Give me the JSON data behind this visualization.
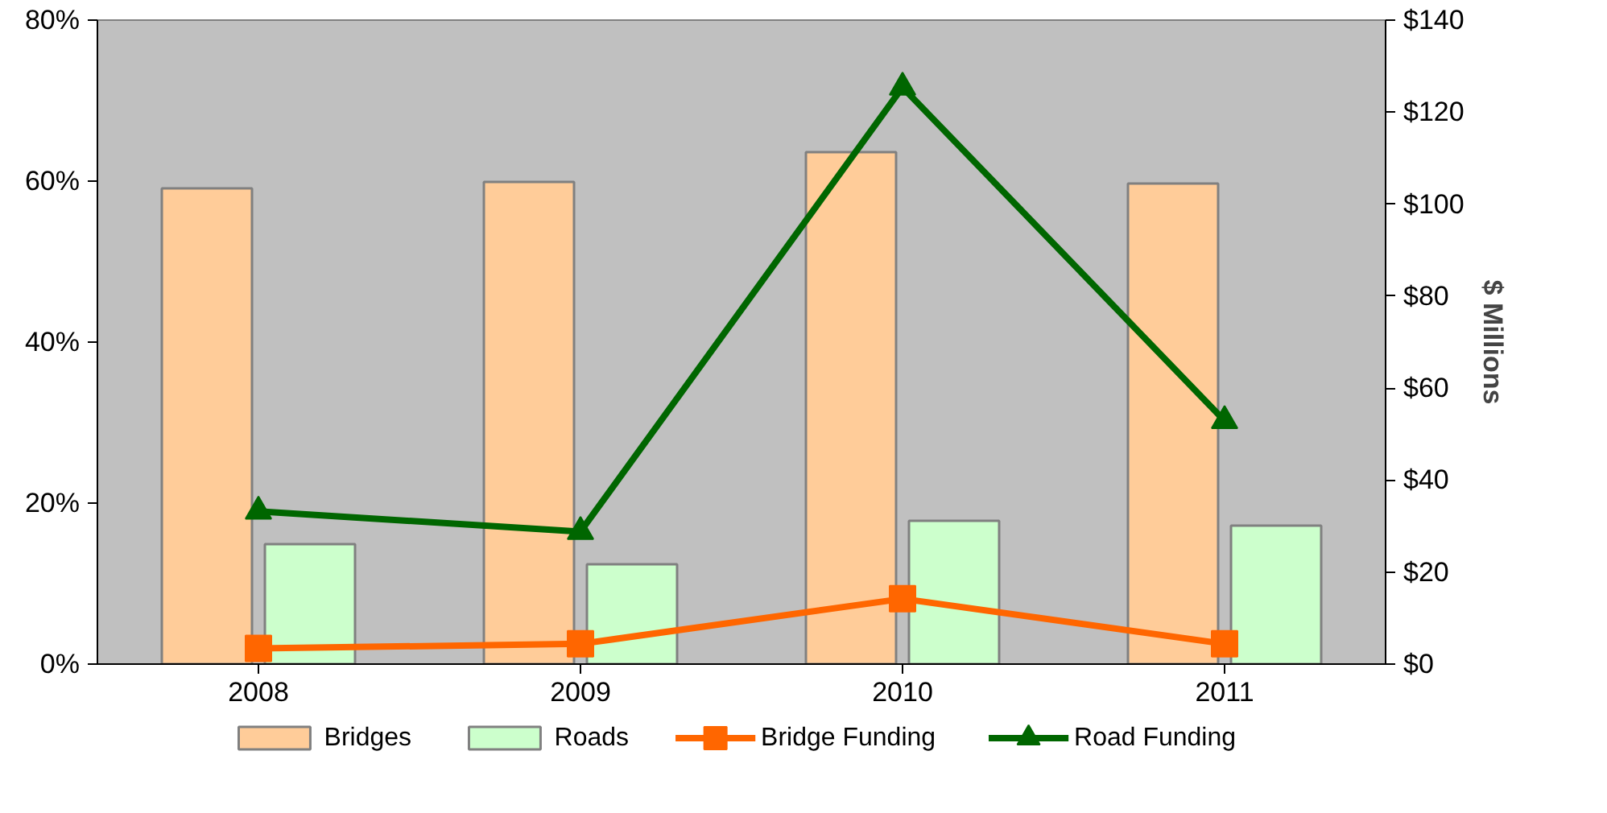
{
  "chart_data": {
    "type": "bar",
    "categories": [
      "2008",
      "2009",
      "2010",
      "2011"
    ],
    "ylabel": null,
    "y2label": "$ Millions",
    "series": [
      {
        "name": "Bridges",
        "type": "bar",
        "color": "#ffcc99",
        "values": [
          59.1,
          59.9,
          63.6,
          59.7
        ]
      },
      {
        "name": "Roads",
        "type": "bar",
        "color": "#ccffcc",
        "values": [
          14.9,
          12.4,
          17.8,
          17.2
        ]
      },
      {
        "name": "Bridge Funding",
        "type": "line",
        "axis": "y2",
        "marker": "square",
        "color": "#ff6600",
        "values": [
          3.4,
          4.4,
          14.2,
          4.4
        ]
      },
      {
        "name": "Road Funding",
        "type": "line",
        "axis": "y2",
        "marker": "triangle",
        "color": "#006600",
        "values": [
          33.2,
          28.8,
          125.4,
          52.9
        ]
      }
    ],
    "ylim": [
      0,
      80
    ],
    "yticks": [
      {
        "value": 0,
        "label": "0%"
      },
      {
        "value": 20,
        "label": "20%"
      },
      {
        "value": 40,
        "label": "40%"
      },
      {
        "value": 60,
        "label": "60%"
      },
      {
        "value": 80,
        "label": "80%"
      }
    ],
    "y2lim": [
      0,
      140
    ],
    "y2ticks": [
      {
        "value": 0,
        "label": "$0"
      },
      {
        "value": 20,
        "label": "$20"
      },
      {
        "value": 40,
        "label": "$40"
      },
      {
        "value": 60,
        "label": "$60"
      },
      {
        "value": 80,
        "label": "$80"
      },
      {
        "value": 100,
        "label": "$100"
      },
      {
        "value": 120,
        "label": "$120"
      },
      {
        "value": 140,
        "label": "$140"
      }
    ],
    "grid": false,
    "legend": "bottom",
    "line_style": "solid"
  }
}
